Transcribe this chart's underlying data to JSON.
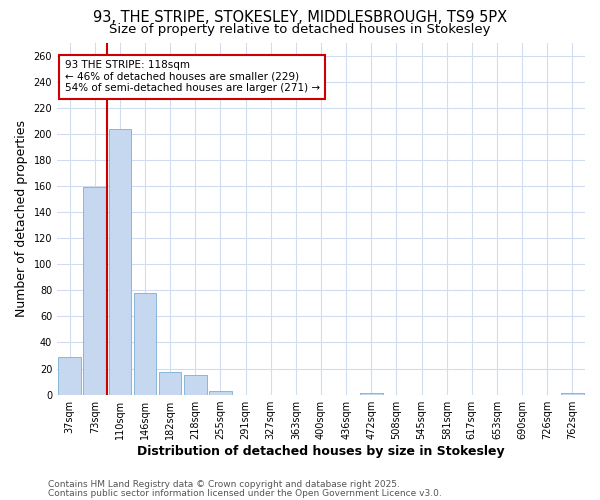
{
  "title1": "93, THE STRIPE, STOKESLEY, MIDDLESBROUGH, TS9 5PX",
  "title2": "Size of property relative to detached houses in Stokesley",
  "xlabel": "Distribution of detached houses by size in Stokesley",
  "ylabel": "Number of detached properties",
  "categories": [
    "37sqm",
    "73sqm",
    "110sqm",
    "146sqm",
    "182sqm",
    "218sqm",
    "255sqm",
    "291sqm",
    "327sqm",
    "363sqm",
    "400sqm",
    "436sqm",
    "472sqm",
    "508sqm",
    "545sqm",
    "581sqm",
    "617sqm",
    "653sqm",
    "690sqm",
    "726sqm",
    "762sqm"
  ],
  "values": [
    29,
    159,
    204,
    78,
    17,
    15,
    3,
    0,
    0,
    0,
    0,
    0,
    1,
    0,
    0,
    0,
    0,
    0,
    0,
    0,
    1
  ],
  "bar_color": "#c5d8f0",
  "bar_edge_color": "#7aafd4",
  "red_line_index": 2,
  "annotation_line1": "93 THE STRIPE: 118sqm",
  "annotation_line2": "← 46% of detached houses are smaller (229)",
  "annotation_line3": "54% of semi-detached houses are larger (271) →",
  "annotation_box_color": "white",
  "annotation_box_edge_color": "#cc0000",
  "red_line_color": "#cc0000",
  "footer1": "Contains HM Land Registry data © Crown copyright and database right 2025.",
  "footer2": "Contains public sector information licensed under the Open Government Licence v3.0.",
  "ylim": [
    0,
    270
  ],
  "yticks": [
    0,
    20,
    40,
    60,
    80,
    100,
    120,
    140,
    160,
    180,
    200,
    220,
    240,
    260
  ],
  "background_color": "#ffffff",
  "grid_color": "#d0ddf0",
  "title_fontsize": 10.5,
  "subtitle_fontsize": 9.5,
  "axis_label_fontsize": 9,
  "tick_fontsize": 7,
  "footer_fontsize": 6.5
}
